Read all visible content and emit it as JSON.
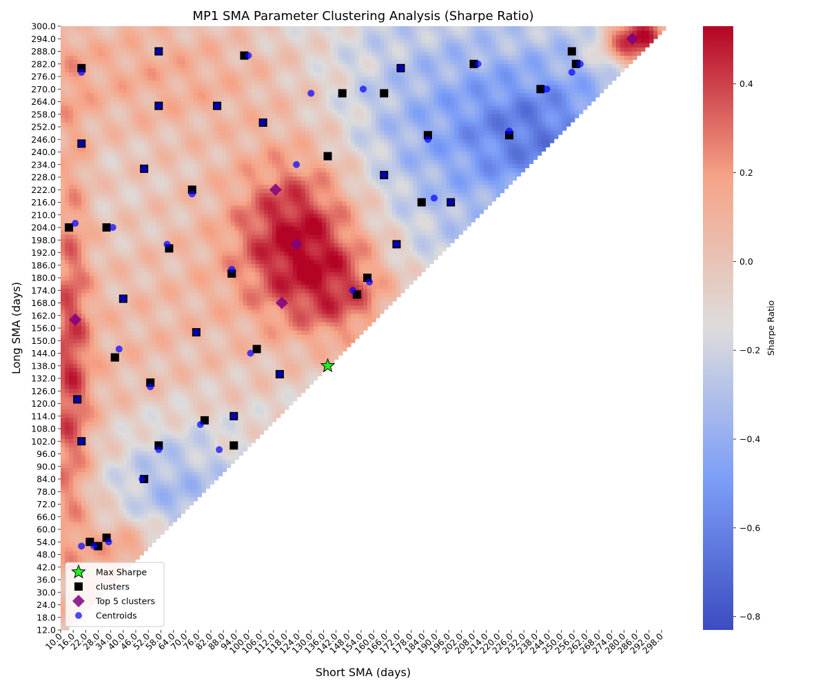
{
  "chart_data": {
    "type": "heatmap",
    "title": "MP1 SMA Parameter Clustering Analysis (Sharpe Ratio)",
    "xlabel": "Short SMA (days)",
    "ylabel": "Long SMA (days)",
    "x_range": [
      10,
      300
    ],
    "y_range": [
      12,
      300
    ],
    "x_tick_step": 6,
    "y_tick_step": 6,
    "colorbar": {
      "label": "Sharpe Ratio",
      "vmin": -0.83,
      "vmax": 0.53,
      "ticks": [
        0.4,
        0.2,
        0.0,
        -0.2,
        -0.4,
        -0.6,
        -0.8
      ],
      "tick_labels": [
        "0.4",
        "0.2",
        "0.0",
        "−0.2",
        "−0.4",
        "−0.6",
        "−0.8"
      ],
      "colormap": "coolwarm"
    },
    "heatmap_notes": "Values only defined where Long SMA > Short SMA (upper-left triangle); lower-right triangle blank.",
    "hot_regions": [
      {
        "x": 124,
        "y": 200,
        "sx": 22,
        "sy": 30,
        "amp": 0.55
      },
      {
        "x": 150,
        "y": 170,
        "sx": 18,
        "sy": 18,
        "amp": 0.3
      },
      {
        "x": 14,
        "y": 150,
        "sx": 7,
        "sy": 80,
        "amp": 0.35
      },
      {
        "x": 288,
        "y": 294,
        "sx": 12,
        "sy": 10,
        "amp": 0.8
      },
      {
        "x": 40,
        "y": 50,
        "sx": 14,
        "sy": 12,
        "amp": 0.3
      },
      {
        "x": 60,
        "y": 280,
        "sx": 60,
        "sy": 25,
        "amp": 0.25
      }
    ],
    "cold_regions": [
      {
        "x": 190,
        "y": 260,
        "sx": 50,
        "sy": 40,
        "amp": -0.35
      },
      {
        "x": 60,
        "y": 80,
        "sx": 25,
        "sy": 25,
        "amp": -0.3
      },
      {
        "x": 240,
        "y": 250,
        "sx": 25,
        "sy": 20,
        "amp": -0.25
      }
    ],
    "series": [
      {
        "name": "Max Sharpe",
        "marker": "star",
        "color": "#22ee22",
        "points": [
          [
            138,
            138
          ]
        ]
      },
      {
        "name": "clusters",
        "marker": "square",
        "color": "#000000",
        "points": [
          [
            20,
            280
          ],
          [
            57,
            288
          ],
          [
            98,
            286
          ],
          [
            57,
            262
          ],
          [
            85,
            262
          ],
          [
            107,
            254
          ],
          [
            20,
            244
          ],
          [
            50,
            232
          ],
          [
            73,
            222
          ],
          [
            138,
            238
          ],
          [
            165,
            229
          ],
          [
            14,
            204
          ],
          [
            32,
            204
          ],
          [
            62,
            194
          ],
          [
            40,
            170
          ],
          [
            92,
            182
          ],
          [
            75,
            154
          ],
          [
            104,
            146
          ],
          [
            36,
            142
          ],
          [
            115,
            134
          ],
          [
            53,
            130
          ],
          [
            152,
            172
          ],
          [
            157,
            180
          ],
          [
            171,
            196
          ],
          [
            183,
            216
          ],
          [
            197,
            216
          ],
          [
            18,
            122
          ],
          [
            79,
            112
          ],
          [
            93,
            114
          ],
          [
            20,
            102
          ],
          [
            57,
            100
          ],
          [
            93,
            100
          ],
          [
            50,
            84
          ],
          [
            24,
            54
          ],
          [
            32,
            56
          ],
          [
            28,
            52
          ],
          [
            145,
            268
          ],
          [
            165,
            268
          ],
          [
            173,
            280
          ],
          [
            208,
            282
          ],
          [
            186,
            248
          ],
          [
            225,
            248
          ],
          [
            240,
            270
          ],
          [
            255,
            288
          ],
          [
            257,
            282
          ]
        ]
      },
      {
        "name": "Top 5 clusters",
        "marker": "diamond",
        "color": "#800080",
        "points": [
          [
            113,
            222
          ],
          [
            123,
            196
          ],
          [
            116,
            168
          ],
          [
            17,
            160
          ],
          [
            284,
            294
          ]
        ]
      },
      {
        "name": "Centroids",
        "marker": "circle",
        "color": "#0000ff",
        "points": [
          [
            20,
            278
          ],
          [
            57,
            288
          ],
          [
            100,
            286
          ],
          [
            57,
            262
          ],
          [
            85,
            262
          ],
          [
            107,
            254
          ],
          [
            20,
            244
          ],
          [
            50,
            232
          ],
          [
            73,
            220
          ],
          [
            123,
            234
          ],
          [
            165,
            229
          ],
          [
            17,
            206
          ],
          [
            35,
            204
          ],
          [
            61,
            196
          ],
          [
            40,
            170
          ],
          [
            92,
            184
          ],
          [
            75,
            154
          ],
          [
            101,
            144
          ],
          [
            38,
            146
          ],
          [
            115,
            134
          ],
          [
            53,
            128
          ],
          [
            150,
            174
          ],
          [
            158,
            178
          ],
          [
            171,
            196
          ],
          [
            189,
            218
          ],
          [
            197,
            216
          ],
          [
            18,
            122
          ],
          [
            77,
            110
          ],
          [
            93,
            114
          ],
          [
            20,
            102
          ],
          [
            57,
            98
          ],
          [
            86,
            98
          ],
          [
            49,
            84
          ],
          [
            20,
            52
          ],
          [
            26,
            52
          ],
          [
            33,
            54
          ],
          [
            130,
            268
          ],
          [
            155,
            270
          ],
          [
            173,
            280
          ],
          [
            210,
            282
          ],
          [
            186,
            246
          ],
          [
            225,
            250
          ],
          [
            243,
            270
          ],
          [
            255,
            278
          ],
          [
            259,
            282
          ]
        ]
      }
    ],
    "legend": {
      "placement": "lower-left",
      "entries": [
        "Max Sharpe",
        "clusters",
        "Top 5 clusters",
        "Centroids"
      ]
    }
  }
}
